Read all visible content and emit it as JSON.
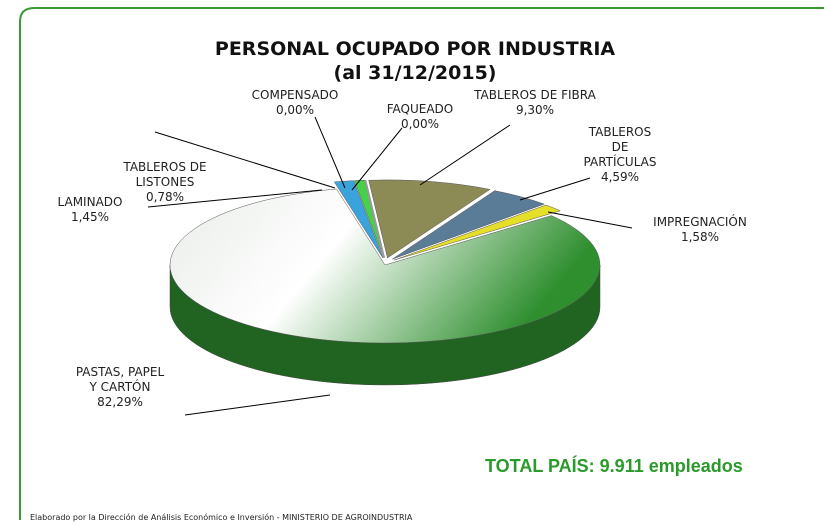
{
  "chart_data": {
    "type": "pie3d",
    "title": "PERSONAL OCUPADO POR INDUSTRIA",
    "subtitle": "(al 31/12/2015)",
    "categories": [
      "TABLEROS DE FIBRA",
      "TABLEROS DE PARTÍCULAS",
      "IMPREGNACIÓN",
      "PASTAS, PAPEL Y CARTÓN",
      "LAMINADO",
      "TABLEROS DE LISTONES",
      "COMPENSADO",
      "FAQUEADO"
    ],
    "values": [
      9.3,
      4.59,
      1.58,
      82.29,
      1.45,
      0.78,
      0.0,
      0.0
    ],
    "value_labels": [
      "9,30%",
      "4,59%",
      "1,58%",
      "82,29%",
      "1,45%",
      "0,78%",
      "0,00%",
      "0,00%"
    ],
    "colors": [
      "#8c8a55",
      "#5b7c96",
      "#e6df2a",
      "#2f8f2f",
      "#3aa3dc",
      "#46d246",
      "#7a7a7a",
      "#9a9a9a"
    ],
    "annotation": "TOTAL PAÍS: 9.911 empleados",
    "source": "Elaborado por la Dirección de Análisis Económico e Inversión - MINISTERIO DE AGROINDUSTRIA"
  }
}
